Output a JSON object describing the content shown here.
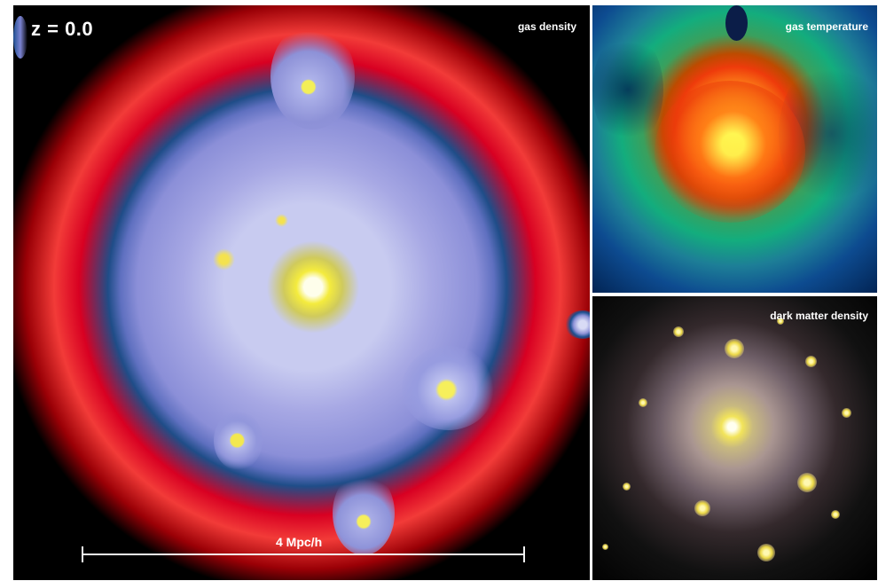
{
  "gas_density": {
    "redshift": "z =  0.0",
    "label": "gas density",
    "scale": "4 Mpc/h"
  },
  "gas_temperature": {
    "label": "gas temperature"
  },
  "dark_matter": {
    "label": "dark matter density"
  }
}
